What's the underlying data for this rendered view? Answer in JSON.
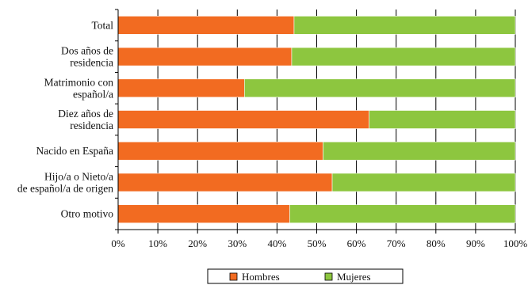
{
  "chart_data": {
    "type": "bar",
    "orientation": "horizontal",
    "stacked": true,
    "categories": [
      [
        "Total"
      ],
      [
        "Dos años de",
        "residencia"
      ],
      [
        "Matrimonio con",
        "español/a"
      ],
      [
        "Diez años de",
        "residencia"
      ],
      [
        "Nacido en España"
      ],
      [
        "Hijo/a o Nieto/a",
        "de español/a de origen"
      ],
      [
        "Otro motivo"
      ]
    ],
    "series": [
      {
        "name": "Hombres",
        "color": "#f26b21",
        "values": [
          44.3,
          43.7,
          31.8,
          63.2,
          51.6,
          53.9,
          43.2
        ]
      },
      {
        "name": "Mujeres",
        "color": "#8dc63f",
        "values": [
          55.7,
          56.3,
          68.2,
          36.8,
          48.4,
          46.1,
          56.8
        ]
      }
    ],
    "xlim": [
      0,
      100
    ],
    "x_ticks": [
      "0%",
      "10%",
      "20%",
      "30%",
      "40%",
      "50%",
      "60%",
      "70%",
      "80%",
      "90%",
      "100%"
    ],
    "grid": "vertical",
    "legend_position": "bottom"
  }
}
